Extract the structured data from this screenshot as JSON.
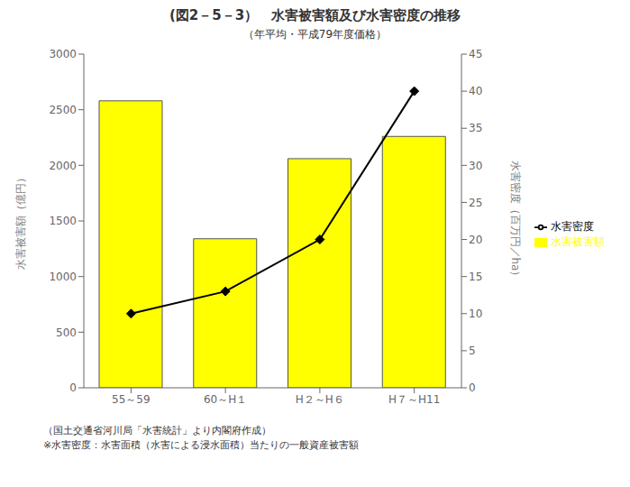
{
  "chart_data": {
    "type": "bar",
    "title": "(図2－5－3）　水害被害額及び水害密度の推移",
    "subtitle": "（年平均・平成79年度価格）",
    "categories": [
      "55～59",
      "60～H１",
      "H２～H６",
      "H７～H11"
    ],
    "series": [
      {
        "name": "水害被害額",
        "type": "bar",
        "color": "#FFFF00",
        "values": [
          2580,
          1340,
          2060,
          2260
        ]
      },
      {
        "name": "水害密度",
        "type": "line",
        "color": "#000000",
        "marker": "diamond",
        "axis": "y2",
        "values": [
          10,
          13,
          20,
          40
        ]
      }
    ],
    "ylabel": "水害被害額（億円）",
    "y2label": "水害密度（百万円／ha）",
    "ylim": [
      0,
      3000
    ],
    "yticks": [
      0,
      500,
      1000,
      1500,
      2000,
      2500,
      3000
    ],
    "y2lim": [
      0,
      45
    ],
    "y2ticks": [
      0,
      5,
      10,
      15,
      20,
      25,
      30,
      35,
      40,
      45
    ],
    "annotations": [
      "（国土交通省河川局「水害統計」より内閣府作成）",
      "※水害密度：水害面積（水害による浸水面積）当たりの一般資産被害額"
    ],
    "legend": "right",
    "grid": false
  }
}
